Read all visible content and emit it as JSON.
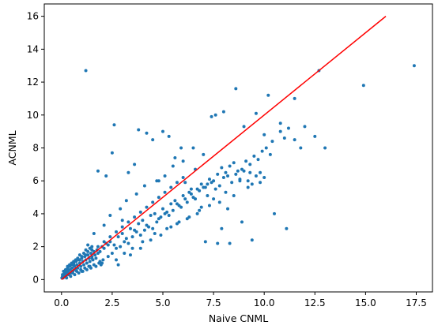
{
  "chart_data": {
    "type": "scatter",
    "title": "",
    "xlabel": "Naive CNML",
    "ylabel": "ACNML",
    "xlim": [
      -0.85,
      18.3
    ],
    "ylim": [
      -0.75,
      16.75
    ],
    "xticks": [
      0.0,
      2.5,
      5.0,
      7.5,
      10.0,
      12.5,
      15.0,
      17.5
    ],
    "xtick_labels": [
      "0.0",
      "2.5",
      "5.0",
      "7.5",
      "10.0",
      "12.5",
      "15.0",
      "17.5"
    ],
    "yticks": [
      0,
      2,
      4,
      6,
      8,
      10,
      12,
      14,
      16
    ],
    "ytick_labels": [
      "0",
      "2",
      "4",
      "6",
      "8",
      "10",
      "12",
      "14",
      "16"
    ],
    "grid": false,
    "colors": {
      "points": "#1f77b4",
      "reference_line": "#ff0000"
    },
    "reference_line": {
      "x": [
        0,
        16
      ],
      "y": [
        0,
        16
      ]
    },
    "series": [
      {
        "x": [
          0.02,
          0.05,
          0.08,
          0.1,
          0.12,
          0.15,
          0.18,
          0.2,
          0.22,
          0.25,
          0.28,
          0.3,
          0.33,
          0.36,
          0.4,
          0.43,
          0.46,
          0.5,
          0.53,
          0.56,
          0.6,
          0.64,
          0.68,
          0.72,
          0.76,
          0.8,
          0.85,
          0.9,
          0.95,
          1.0,
          1.05,
          1.1,
          1.15,
          1.2,
          1.25,
          1.3,
          1.35,
          1.4,
          1.45,
          1.5,
          1.55,
          1.6,
          1.65,
          1.7,
          1.75,
          1.8,
          1.9,
          2.0,
          2.1,
          2.2,
          2.3,
          0.1,
          0.2,
          0.3,
          0.4,
          0.5,
          0.6,
          0.7,
          0.8,
          0.9,
          1.0,
          1.1,
          1.2,
          1.3,
          1.4,
          1.5,
          0.15,
          0.35,
          0.55,
          0.75,
          0.95,
          1.15,
          1.35,
          1.6,
          1.85,
          2.05,
          0.05,
          0.25,
          0.45,
          0.65,
          0.85,
          1.05,
          1.25,
          1.45,
          1.7,
          1.95,
          2.4,
          2.6,
          2.8,
          3.0,
          3.2,
          3.4,
          3.6,
          3.8,
          4.0,
          4.2,
          4.4,
          4.6,
          4.8,
          5.0,
          5.2,
          5.4,
          5.6,
          5.8,
          6.0,
          2.5,
          2.7,
          2.9,
          3.1,
          3.3,
          3.5,
          3.7,
          3.9,
          4.1,
          4.3,
          4.5,
          4.7,
          4.9,
          5.1,
          5.3,
          5.5,
          5.7,
          5.9,
          6.1,
          6.3,
          6.5,
          6.7,
          6.9,
          7.1,
          7.3,
          7.5,
          7.7,
          7.9,
          8.1,
          8.3,
          8.5,
          8.7,
          8.9,
          9.1,
          9.3,
          9.5,
          9.7,
          9.9,
          10.1,
          10.3,
          6.2,
          6.4,
          6.6,
          6.8,
          7.0,
          7.2,
          7.4,
          7.6,
          7.8,
          8.0,
          8.2,
          8.4,
          8.6,
          8.8,
          9.0,
          9.2,
          9.4,
          9.6,
          9.8,
          10.0,
          10.4,
          10.8,
          11.0,
          11.2,
          11.5,
          11.8,
          12.0,
          12.5,
          13.0,
          1.2,
          2.6,
          3.0,
          3.8,
          4.2,
          5.0,
          5.9,
          6.5,
          7.0,
          7.4,
          7.6,
          8.0,
          8.6,
          9.0,
          9.6,
          10.2,
          10.8,
          11.5,
          12.7,
          14.9,
          17.4,
          1.8,
          2.2,
          2.5,
          3.3,
          3.6,
          4.5,
          4.8,
          5.3,
          5.6,
          6.1,
          6.6,
          6.8,
          7.2,
          7.9,
          8.3,
          1.5,
          2.0,
          2.8,
          3.4,
          3.9,
          4.4,
          4.9,
          5.4,
          5.8,
          6.3,
          6.9,
          7.5,
          8.1,
          8.8,
          9.3,
          10.0,
          1.0,
          1.4,
          1.9,
          2.3,
          2.7,
          3.1,
          3.5,
          4.0,
          4.6,
          5.2,
          5.7,
          6.2,
          6.7,
          7.3,
          7.8,
          8.5,
          9.2,
          9.8,
          1.3,
          1.6,
          2.1,
          2.4,
          2.9,
          3.2,
          3.7,
          4.1,
          4.7,
          5.1,
          5.5,
          6.0,
          6.4,
          7.1,
          7.7,
          8.2,
          8.9,
          9.4,
          10.5,
          11.1,
          0.3,
          0.6,
          0.9,
          1.2,
          1.5,
          1.8,
          2.1,
          2.4,
          2.7,
          3.0,
          3.3,
          3.6,
          3.9,
          4.2,
          4.5,
          4.8,
          5.1,
          5.4,
          5.7,
          6.0
        ],
        "y": [
          0.1,
          0.2,
          0.1,
          0.3,
          0.2,
          0.4,
          0.3,
          0.5,
          0.2,
          0.6,
          0.4,
          0.7,
          0.5,
          0.3,
          0.8,
          0.6,
          0.4,
          0.9,
          0.7,
          0.5,
          1.0,
          0.8,
          0.6,
          1.1,
          0.9,
          0.7,
          1.2,
          1.0,
          0.8,
          1.3,
          1.1,
          0.9,
          1.4,
          1.2,
          1.0,
          1.5,
          1.3,
          1.1,
          1.6,
          1.4,
          1.2,
          1.7,
          1.5,
          1.3,
          1.8,
          1.6,
          1.7,
          2.0,
          1.9,
          2.2,
          2.1,
          0.5,
          0.6,
          0.8,
          0.9,
          1.0,
          1.1,
          1.2,
          1.3,
          1.5,
          1.4,
          1.6,
          1.8,
          1.7,
          1.9,
          2.0,
          0.2,
          0.3,
          0.4,
          0.5,
          0.6,
          0.7,
          0.8,
          0.9,
          1.0,
          1.2,
          0.3,
          0.1,
          0.2,
          0.3,
          0.4,
          0.5,
          0.6,
          0.7,
          0.8,
          0.9,
          2.3,
          2.1,
          2.6,
          2.8,
          2.5,
          3.1,
          3.0,
          3.4,
          3.6,
          3.3,
          3.9,
          4.0,
          3.7,
          4.3,
          4.1,
          4.6,
          4.8,
          4.5,
          5.1,
          1.6,
          1.9,
          2.0,
          2.3,
          2.2,
          2.6,
          2.9,
          2.7,
          3.0,
          3.2,
          3.1,
          3.5,
          3.8,
          4.0,
          3.9,
          4.2,
          4.6,
          4.4,
          4.9,
          5.3,
          5.0,
          5.5,
          5.8,
          5.6,
          6.1,
          6.0,
          6.4,
          6.8,
          6.5,
          6.9,
          7.1,
          6.6,
          6.7,
          7.2,
          7.0,
          7.5,
          7.3,
          7.8,
          8.0,
          7.6,
          4.7,
          5.2,
          4.9,
          5.4,
          5.6,
          5.1,
          5.9,
          5.5,
          5.7,
          6.2,
          6.3,
          5.9,
          6.4,
          6.1,
          6.6,
          6.0,
          5.8,
          6.3,
          6.5,
          8.8,
          8.4,
          9.0,
          8.6,
          9.2,
          8.5,
          8.0,
          9.3,
          8.7,
          8.0,
          12.7,
          9.4,
          3.6,
          9.1,
          8.9,
          9.0,
          8.0,
          8.0,
          7.6,
          9.9,
          10.0,
          10.2,
          11.6,
          9.3,
          10.1,
          11.2,
          9.5,
          11.0,
          12.7,
          11.8,
          13.0,
          6.6,
          6.3,
          7.7,
          6.5,
          7.0,
          8.5,
          6.0,
          8.7,
          7.4,
          5.9,
          6.7,
          4.2,
          5.8,
          3.1,
          2.2,
          1.3,
          1.0,
          0.9,
          1.5,
          1.9,
          2.4,
          2.7,
          3.2,
          3.5,
          3.8,
          4.4,
          4.9,
          5.3,
          6.0,
          6.5,
          6.2,
          0.5,
          0.8,
          1.1,
          1.4,
          1.2,
          1.6,
          1.9,
          2.3,
          2.8,
          3.1,
          3.4,
          3.7,
          4.0,
          4.5,
          4.7,
          5.1,
          5.6,
          5.9,
          2.1,
          2.8,
          3.3,
          3.9,
          4.3,
          4.8,
          5.2,
          5.7,
          6.0,
          6.3,
          6.9,
          7.2,
          5.5,
          2.3,
          2.2,
          4.3,
          3.5,
          2.4,
          4.0,
          3.1,
          0.6,
          0.9,
          1.2,
          1.5,
          1.8,
          2.0,
          2.3,
          2.6,
          2.9,
          3.2,
          3.5,
          3.8,
          4.1,
          4.4,
          4.7,
          5.0,
          5.3,
          5.6,
          5.9,
          6.2
        ]
      }
    ]
  }
}
